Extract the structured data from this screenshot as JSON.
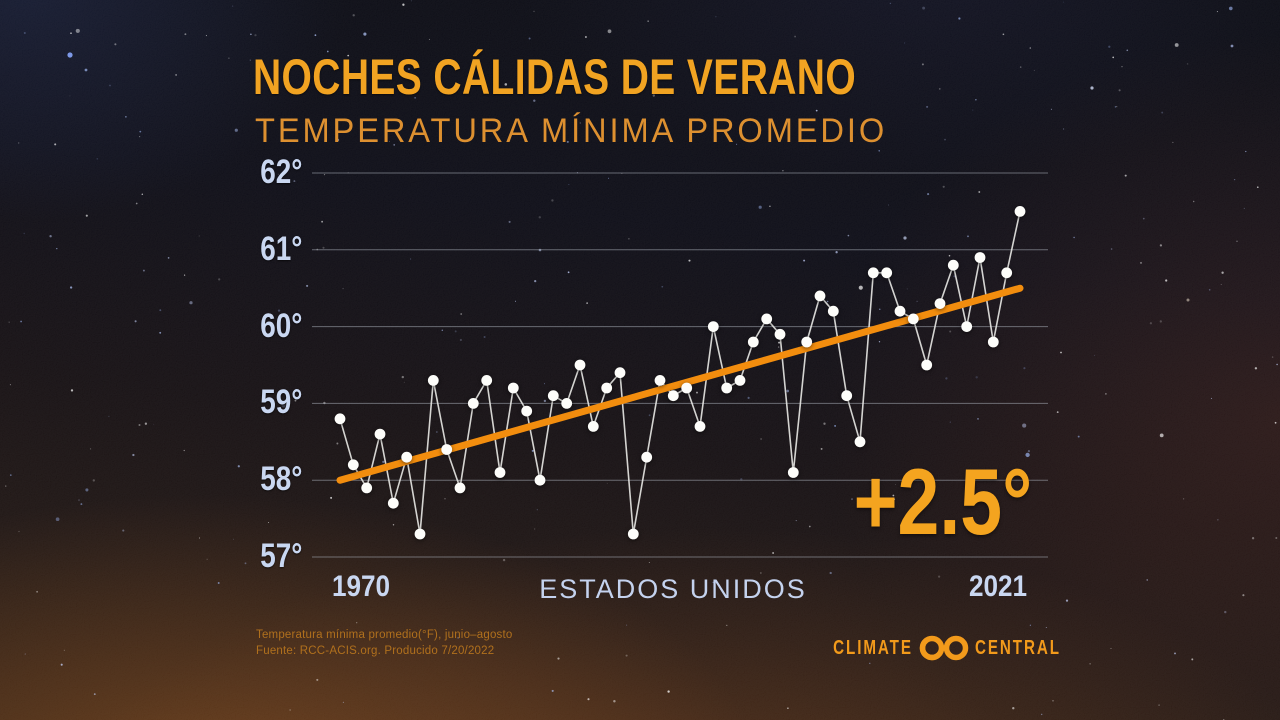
{
  "header": {
    "title": "NOCHES CÁLIDAS DE VERANO",
    "subtitle": "TEMPERATURA MÍNIMA PROMEDIO"
  },
  "chart_data": {
    "type": "line",
    "title": "NOCHES CÁLIDAS DE VERANO — TEMPERATURA MÍNIMA PROMEDIO",
    "region_label": "ESTADOS UNIDOS",
    "x_label_left": "1970",
    "x_label_right": "2021",
    "annotation": "+2.5°",
    "grid": true,
    "ylim": [
      56.7,
      62.3
    ],
    "yticks": [
      62,
      61,
      60,
      59,
      58,
      57
    ],
    "ytick_suffix": "°",
    "years": [
      1970,
      1971,
      1972,
      1973,
      1974,
      1975,
      1976,
      1977,
      1978,
      1979,
      1980,
      1981,
      1982,
      1983,
      1984,
      1985,
      1986,
      1987,
      1988,
      1989,
      1990,
      1991,
      1992,
      1993,
      1994,
      1995,
      1996,
      1997,
      1998,
      1999,
      2000,
      2001,
      2002,
      2003,
      2004,
      2005,
      2006,
      2007,
      2008,
      2009,
      2010,
      2011,
      2012,
      2013,
      2014,
      2015,
      2016,
      2017,
      2018,
      2019,
      2020,
      2021
    ],
    "values": [
      58.8,
      58.2,
      57.9,
      58.6,
      57.7,
      58.3,
      57.3,
      59.3,
      58.4,
      57.9,
      59.0,
      59.3,
      58.1,
      59.2,
      58.9,
      58.0,
      59.1,
      59.0,
      59.5,
      58.7,
      59.2,
      59.4,
      57.3,
      58.3,
      59.3,
      59.1,
      59.2,
      58.7,
      60.0,
      59.2,
      59.3,
      59.8,
      60.1,
      59.9,
      58.1,
      59.8,
      60.4,
      60.2,
      59.1,
      58.5,
      60.7,
      60.7,
      60.2,
      60.1,
      59.5,
      60.3,
      60.8,
      60.0,
      60.9,
      59.8,
      60.7,
      61.5
    ],
    "trend": {
      "start_year": 1970,
      "start_value": 58.0,
      "end_year": 2021,
      "end_value": 60.5,
      "change_label": "+2.5°"
    },
    "colors": {
      "trend_line": "#f28d0e",
      "series_line": "#e9e9e5",
      "point_fill": "#fdfdfa",
      "gridline": "#aab0ba",
      "axis_text": "#c9d7f1",
      "title_orange": "#f1a322",
      "badge_orange": "#f4a41f"
    }
  },
  "footer": {
    "note_line1": "Temperatura mínima promedio(°F), junio–agosto",
    "note_line2": "Fuente: RCC-ACIS.org. Producido 7/20/2022"
  },
  "logo": {
    "word_left": "CLIMATE",
    "word_right": "CENTRAL"
  }
}
